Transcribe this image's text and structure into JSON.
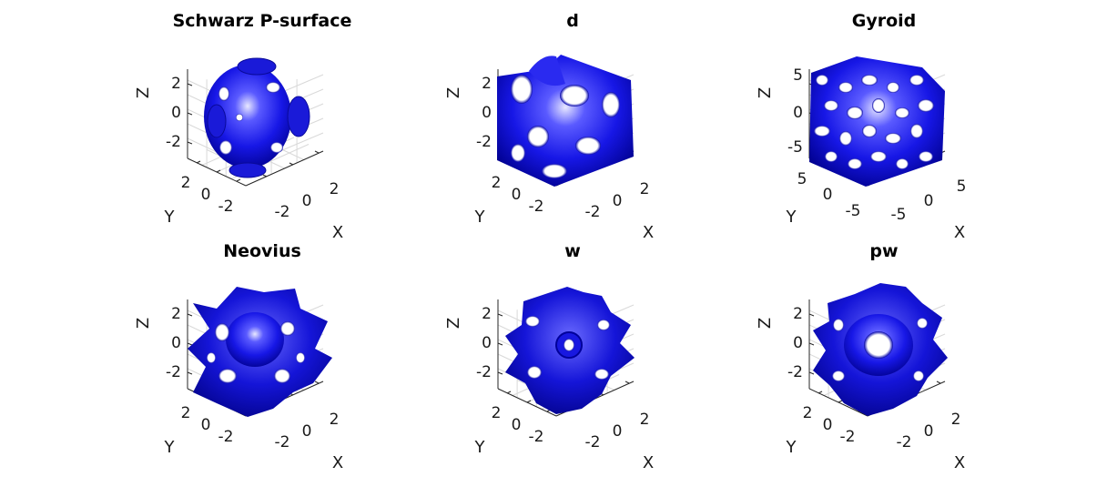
{
  "chart_data": [
    {
      "type": "surface",
      "title": "Schwarz P-surface",
      "xlabel": "X",
      "ylabel": "Y",
      "zlabel": "Z",
      "x_ticks": [
        "-2",
        "0",
        "2"
      ],
      "y_ticks": [
        "-2",
        "0",
        "2"
      ],
      "z_ticks": [
        "-2",
        "0",
        "2"
      ],
      "surface_color": "#1414d2",
      "shape": "p"
    },
    {
      "type": "surface",
      "title": "d",
      "xlabel": "X",
      "ylabel": "Y",
      "zlabel": "Z",
      "x_ticks": [
        "-2",
        "0",
        "2"
      ],
      "y_ticks": [
        "-2",
        "0",
        "2"
      ],
      "z_ticks": [
        "-2",
        "0",
        "2"
      ],
      "surface_color": "#1414d2",
      "shape": "d"
    },
    {
      "type": "surface",
      "title": "Gyroid",
      "xlabel": "X",
      "ylabel": "Y",
      "zlabel": "Z",
      "x_ticks": [
        "-5",
        "0",
        "5"
      ],
      "y_ticks": [
        "-5",
        "0",
        "5"
      ],
      "z_ticks": [
        "-5",
        "0",
        "5"
      ],
      "surface_color": "#1414d2",
      "shape": "gyroid"
    },
    {
      "type": "surface",
      "title": "Neovius",
      "xlabel": "X",
      "ylabel": "Y",
      "zlabel": "Z",
      "x_ticks": [
        "-2",
        "0",
        "2"
      ],
      "y_ticks": [
        "-2",
        "0",
        "2"
      ],
      "z_ticks": [
        "-2",
        "0",
        "2"
      ],
      "surface_color": "#1414d2",
      "shape": "neovius"
    },
    {
      "type": "surface",
      "title": "w",
      "xlabel": "X",
      "ylabel": "Y",
      "zlabel": "Z",
      "x_ticks": [
        "-2",
        "0",
        "2"
      ],
      "y_ticks": [
        "-2",
        "0",
        "2"
      ],
      "z_ticks": [
        "-2",
        "0",
        "2"
      ],
      "surface_color": "#1414d2",
      "shape": "w"
    },
    {
      "type": "surface",
      "title": "pw",
      "xlabel": "X",
      "ylabel": "Y",
      "zlabel": "Z",
      "x_ticks": [
        "-2",
        "0",
        "2"
      ],
      "y_ticks": [
        "-2",
        "0",
        "2"
      ],
      "z_ticks": [
        "-2",
        "0",
        "2"
      ],
      "surface_color": "#1414d2",
      "shape": "pw"
    }
  ]
}
